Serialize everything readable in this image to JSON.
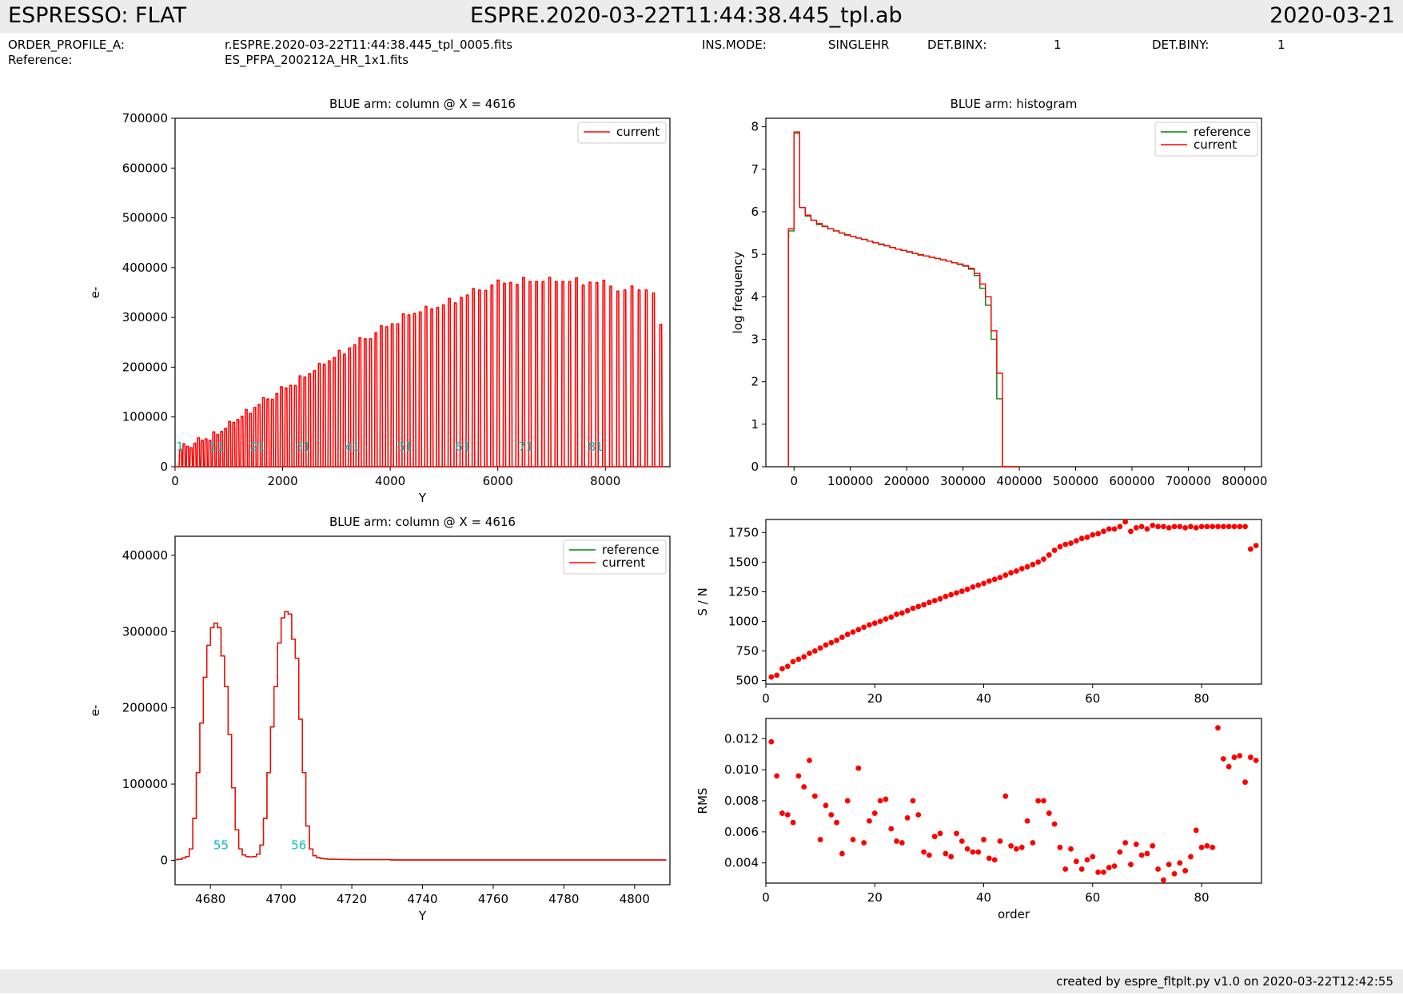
{
  "header": {
    "left": "ESPRESSO: FLAT",
    "center": "ESPRE.2020-03-22T11:44:38.445_tpl.ab",
    "right": "2020-03-21"
  },
  "info": {
    "order_profile_label": "ORDER_PROFILE_A:",
    "order_profile_value": "r.ESPRE.2020-03-22T11:44:38.445_tpl_0005.fits",
    "reference_label": "Reference:",
    "reference_value": "ES_PFPA_200212A_HR_1x1.fits",
    "ins_mode_label": "INS.MODE:",
    "ins_mode_value": "SINGLEHR",
    "det_binx_label": "DET.BINX:",
    "det_binx_value": "1",
    "det_biny_label": "DET.BINY:",
    "det_biny_value": "1"
  },
  "footer": "created by espre_fltplt.py v1.0 on 2020-03-22T12:42:55",
  "colors": {
    "current": "#ff0000",
    "reference": "#008000",
    "order_label": "#00bfbf",
    "band": "#ececec"
  },
  "chart_data": [
    {
      "id": "column",
      "type": "line",
      "title": "BLUE arm: column @ X = 4616",
      "xlabel": "Y",
      "ylabel": "e-",
      "xlim": [
        0,
        9200
      ],
      "ylim": [
        0,
        700000
      ],
      "xticks": [
        0,
        2000,
        4000,
        6000,
        8000
      ],
      "yticks": [
        0,
        100000,
        200000,
        300000,
        400000,
        500000,
        600000,
        700000
      ],
      "legend": [
        "current"
      ],
      "order_labels": [
        {
          "text": "1",
          "x": 90,
          "y": 40000
        },
        {
          "text": "11",
          "x": 780,
          "y": 40000
        },
        {
          "text": "21",
          "x": 1540,
          "y": 40000
        },
        {
          "text": "31",
          "x": 2380,
          "y": 40000
        },
        {
          "text": "41",
          "x": 3300,
          "y": 40000
        },
        {
          "text": "51",
          "x": 4280,
          "y": 40000
        },
        {
          "text": "61",
          "x": 5350,
          "y": 40000
        },
        {
          "text": "71",
          "x": 6520,
          "y": 40000
        },
        {
          "text": "81",
          "x": 7820,
          "y": 40000
        }
      ],
      "peaks": {
        "count": 90,
        "first_y": 100,
        "last_y": 9030,
        "spacing_start": 72,
        "spacing_end": 150,
        "height_profile": [
          [
            0,
            35000
          ],
          [
            10,
            65000
          ],
          [
            20,
            125000
          ],
          [
            30,
            180000
          ],
          [
            40,
            245000
          ],
          [
            50,
            305000
          ],
          [
            55,
            320000
          ],
          [
            60,
            345000
          ],
          [
            64,
            365000
          ],
          [
            68,
            372000
          ],
          [
            72,
            372000
          ],
          [
            76,
            372000
          ],
          [
            80,
            370000
          ],
          [
            84,
            355000
          ],
          [
            88,
            355000
          ],
          [
            89,
            278000
          ]
        ]
      }
    },
    {
      "id": "histogram",
      "type": "step",
      "title": "BLUE arm: histogram",
      "xlabel": "",
      "ylabel": "log frequency",
      "xlim": [
        -50000,
        830000
      ],
      "ylim": [
        0,
        8.2
      ],
      "xticks": [
        0,
        100000,
        200000,
        300000,
        400000,
        500000,
        600000,
        700000,
        800000
      ],
      "yticks": [
        0,
        1,
        2,
        3,
        4,
        5,
        6,
        7,
        8
      ],
      "legend": [
        "reference",
        "current"
      ],
      "edges": [
        -10000,
        0,
        10000,
        20000,
        30000,
        40000,
        50000,
        60000,
        70000,
        80000,
        90000,
        100000,
        110000,
        120000,
        130000,
        140000,
        150000,
        160000,
        170000,
        180000,
        190000,
        200000,
        210000,
        220000,
        230000,
        240000,
        250000,
        260000,
        270000,
        280000,
        290000,
        300000,
        310000,
        320000,
        330000,
        340000,
        350000,
        360000,
        370000,
        380000,
        390000,
        400000
      ],
      "series": [
        {
          "name": "reference",
          "values": [
            5.55,
            7.85,
            6.1,
            5.9,
            5.8,
            5.7,
            5.65,
            5.6,
            5.55,
            5.5,
            5.45,
            5.42,
            5.38,
            5.35,
            5.31,
            5.27,
            5.23,
            5.2,
            5.16,
            5.12,
            5.09,
            5.05,
            5.02,
            4.98,
            4.96,
            4.93,
            4.9,
            4.87,
            4.84,
            4.8,
            4.76,
            4.72,
            4.65,
            4.5,
            4.2,
            3.8,
            3.0,
            1.6,
            0,
            0,
            0
          ]
        },
        {
          "name": "current",
          "values": [
            5.6,
            7.88,
            6.1,
            5.92,
            5.8,
            5.72,
            5.66,
            5.6,
            5.55,
            5.5,
            5.46,
            5.42,
            5.38,
            5.35,
            5.31,
            5.27,
            5.24,
            5.2,
            5.16,
            5.12,
            5.09,
            5.06,
            5.02,
            4.99,
            4.96,
            4.93,
            4.9,
            4.87,
            4.84,
            4.8,
            4.77,
            4.73,
            4.67,
            4.55,
            4.3,
            4.0,
            3.2,
            2.2,
            0,
            0,
            0
          ]
        }
      ]
    },
    {
      "id": "zoom",
      "type": "step",
      "title": "BLUE arm: column @ X = 4616",
      "xlabel": "Y",
      "ylabel": "e-",
      "xlim": [
        4670,
        4810
      ],
      "ylim": [
        -32000,
        425000
      ],
      "xticks": [
        4680,
        4700,
        4720,
        4740,
        4760,
        4780,
        4800
      ],
      "yticks": [
        0,
        100000,
        200000,
        300000,
        400000
      ],
      "legend": [
        "reference",
        "current"
      ],
      "order_labels": [
        {
          "text": "55",
          "x": 4683,
          "y": 20000
        },
        {
          "text": "56",
          "x": 4705,
          "y": 20000
        }
      ],
      "x_start": 4670,
      "values": [
        1000,
        1500,
        3000,
        5000,
        15000,
        55000,
        115000,
        180000,
        240000,
        282000,
        305000,
        311000,
        305000,
        268000,
        228000,
        165000,
        95000,
        40000,
        15000,
        7000,
        5000,
        4500,
        5000,
        8000,
        20000,
        55000,
        115000,
        175000,
        228000,
        285000,
        318000,
        326000,
        323000,
        290000,
        265000,
        185000,
        115000,
        45000,
        15000,
        6000,
        3500,
        2500,
        2000,
        1500,
        1500,
        1200,
        1200,
        1100,
        1100,
        1000,
        1000,
        1000,
        1000,
        1000,
        1000,
        1000,
        1000,
        1000,
        1000,
        1000,
        1000
      ],
      "tail_value": 500,
      "x_end": 4809
    },
    {
      "id": "sn",
      "type": "scatter",
      "title": "",
      "xlabel": "",
      "ylabel": "S / N",
      "xlim": [
        0,
        91
      ],
      "ylim": [
        470,
        1860
      ],
      "xticks": [
        0,
        20,
        40,
        60,
        80
      ],
      "yticks": [
        500,
        750,
        1000,
        1250,
        1500,
        1750
      ],
      "x": [
        1,
        2,
        3,
        4,
        5,
        6,
        7,
        8,
        9,
        10,
        11,
        12,
        13,
        14,
        15,
        16,
        17,
        18,
        19,
        20,
        21,
        22,
        23,
        24,
        25,
        26,
        27,
        28,
        29,
        30,
        31,
        32,
        33,
        34,
        35,
        36,
        37,
        38,
        39,
        40,
        41,
        42,
        43,
        44,
        45,
        46,
        47,
        48,
        49,
        50,
        51,
        52,
        53,
        54,
        55,
        56,
        57,
        58,
        59,
        60,
        61,
        62,
        63,
        64,
        65,
        66,
        67,
        68,
        69,
        70,
        71,
        72,
        73,
        74,
        75,
        76,
        77,
        78,
        79,
        80,
        81,
        82,
        83,
        84,
        85,
        86,
        87,
        88,
        89,
        90
      ],
      "values": [
        530,
        545,
        600,
        620,
        660,
        680,
        700,
        730,
        750,
        775,
        800,
        820,
        840,
        865,
        890,
        910,
        930,
        950,
        970,
        985,
        1000,
        1020,
        1035,
        1060,
        1070,
        1090,
        1110,
        1125,
        1140,
        1160,
        1175,
        1190,
        1210,
        1225,
        1240,
        1255,
        1270,
        1290,
        1305,
        1320,
        1340,
        1355,
        1370,
        1390,
        1410,
        1425,
        1445,
        1460,
        1480,
        1500,
        1525,
        1560,
        1600,
        1630,
        1650,
        1660,
        1680,
        1700,
        1710,
        1730,
        1740,
        1760,
        1780,
        1780,
        1800,
        1840,
        1760,
        1790,
        1800,
        1780,
        1810,
        1800,
        1800,
        1790,
        1800,
        1800,
        1790,
        1800,
        1790,
        1800,
        1800,
        1800,
        1800,
        1800,
        1800,
        1800,
        1800,
        1800,
        1610,
        1640
      ]
    },
    {
      "id": "rms",
      "type": "scatter",
      "title": "",
      "xlabel": "order",
      "ylabel": "RMS",
      "xlim": [
        0,
        91
      ],
      "ylim": [
        0.0027,
        0.0133
      ],
      "xticks": [
        0,
        20,
        40,
        60,
        80
      ],
      "yticks": [
        0.004,
        0.006,
        0.008,
        0.01,
        0.012
      ],
      "x": [
        1,
        2,
        3,
        4,
        5,
        6,
        7,
        8,
        9,
        10,
        11,
        12,
        13,
        14,
        15,
        16,
        17,
        18,
        19,
        20,
        21,
        22,
        23,
        24,
        25,
        26,
        27,
        28,
        29,
        30,
        31,
        32,
        33,
        34,
        35,
        36,
        37,
        38,
        39,
        40,
        41,
        42,
        43,
        44,
        45,
        46,
        47,
        48,
        49,
        50,
        51,
        52,
        53,
        54,
        55,
        56,
        57,
        58,
        59,
        60,
        61,
        62,
        63,
        64,
        65,
        66,
        67,
        68,
        69,
        70,
        71,
        72,
        73,
        74,
        75,
        76,
        77,
        78,
        79,
        80,
        81,
        82,
        83,
        84,
        85,
        86,
        87,
        88,
        89,
        90
      ],
      "values": [
        0.0118,
        0.0096,
        0.0072,
        0.0071,
        0.0066,
        0.0096,
        0.0089,
        0.0106,
        0.0083,
        0.0055,
        0.0077,
        0.0071,
        0.0066,
        0.0046,
        0.008,
        0.0055,
        0.0101,
        0.0053,
        0.0067,
        0.0072,
        0.008,
        0.0081,
        0.0062,
        0.0054,
        0.0053,
        0.0069,
        0.008,
        0.0071,
        0.0047,
        0.0045,
        0.0057,
        0.0059,
        0.0046,
        0.0044,
        0.0059,
        0.0054,
        0.0049,
        0.0047,
        0.0047,
        0.0055,
        0.0043,
        0.0042,
        0.0054,
        0.0083,
        0.0051,
        0.0049,
        0.005,
        0.0067,
        0.0053,
        0.008,
        0.008,
        0.0072,
        0.0065,
        0.005,
        0.0036,
        0.0049,
        0.0041,
        0.0036,
        0.0042,
        0.0044,
        0.0034,
        0.0034,
        0.0037,
        0.0038,
        0.0047,
        0.0053,
        0.0039,
        0.0052,
        0.0045,
        0.0046,
        0.0051,
        0.0036,
        0.0029,
        0.0039,
        0.0033,
        0.004,
        0.0035,
        0.0044,
        0.0061,
        0.005,
        0.0051,
        0.005,
        0.0127,
        0.0107,
        0.0102,
        0.0108,
        0.0109,
        0.0092,
        0.0108,
        0.0106
      ]
    }
  ]
}
